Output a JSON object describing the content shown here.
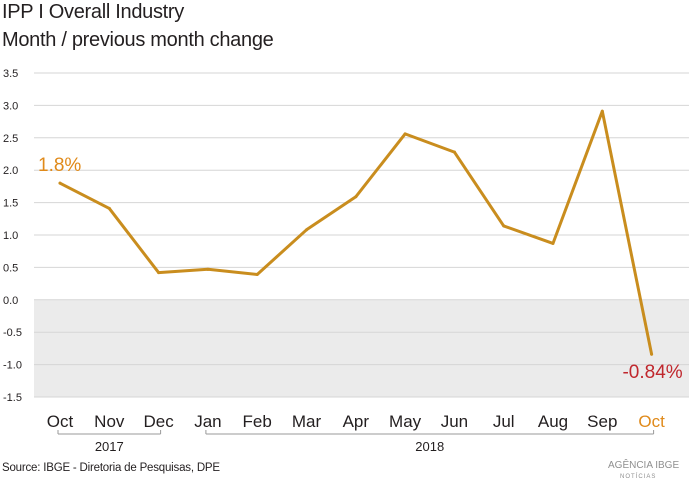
{
  "header": {
    "title": "IPP  I Overall Industry",
    "subtitle": "Month / previous month change"
  },
  "footer": {
    "source": "Source: IBGE - Diretoria de Pesquisas, DPE",
    "logo_text": "AGÊNCIA IBGE",
    "logo_subtext": "NOTÍCIAS"
  },
  "colors": {
    "line": "#c98d1e",
    "first_label": "#e08a1a",
    "last_label": "#c0272d",
    "negative_band": "#ebebeb",
    "highlight_month": "#e08a1a"
  },
  "chart_data": {
    "type": "line",
    "title": "Month / previous month change",
    "categories": [
      "Oct",
      "Nov",
      "Dec",
      "Jan",
      "Feb",
      "Mar",
      "Apr",
      "May",
      "Jun",
      "Jul",
      "Aug",
      "Sep",
      "Oct"
    ],
    "year_groups": [
      {
        "label": "2017",
        "from": 0,
        "to": 2
      },
      {
        "label": "2018",
        "from": 3,
        "to": 12
      }
    ],
    "series": [
      {
        "values": [
          1.8,
          1.41,
          0.42,
          0.47,
          0.39,
          1.08,
          1.59,
          2.56,
          2.28,
          1.14,
          0.87,
          2.91,
          -0.84
        ]
      }
    ],
    "point_labels": [
      {
        "index": 0,
        "text": "1.8%"
      },
      {
        "index": 12,
        "text": "-0.84%"
      }
    ],
    "yticks": [
      "3.5",
      "3.0",
      "2.5",
      "2.0",
      "1.5",
      "1.0",
      "0.5",
      "0.0",
      "-0.5",
      "-1.0",
      "-1.5"
    ],
    "ytick_values": [
      3.5,
      3.0,
      2.5,
      2.0,
      1.5,
      1.0,
      0.5,
      0.0,
      -0.5,
      -1.0,
      -1.5
    ],
    "ylim": [
      -1.5,
      3.5
    ],
    "grid": true,
    "negative_region_shaded": true
  }
}
